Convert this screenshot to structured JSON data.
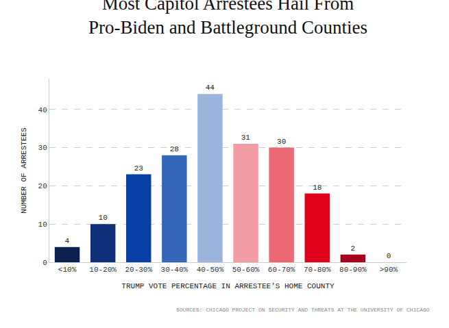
{
  "chart_data": {
    "type": "bar",
    "title": "Most Capitol Arrestees Hail From\nPro-Biden and Battleground Counties",
    "x_label": "TRUMP VOTE PERCENTAGE IN ARRESTEE'S HOME COUNTY",
    "y_label": "NUMBER OF ARRESTEES",
    "annotations": [
      "SOURCES: CHICAGO PROJECT ON SECURITY AND THREATS AT THE UNIVERSITY OF CHICAGO"
    ],
    "categories": [
      "<10%",
      "10-20%",
      "20-30%",
      "30-40%",
      "40-50%",
      "50-60%",
      "60-70%",
      "70-80%",
      "80-90%",
      ">90%"
    ],
    "values": [
      4,
      10,
      23,
      28,
      44,
      31,
      30,
      18,
      2,
      0
    ],
    "colors": [
      "#0c2150",
      "#0f2f78",
      "#063fa6",
      "#3567b9",
      "#9bb4dc",
      "#f29ca4",
      "#eb6875",
      "#df0019",
      "#a6001b",
      "#8c0016"
    ],
    "ylim": [
      0,
      48
    ],
    "yticks": [
      0,
      10,
      20,
      30,
      40
    ],
    "grid": true,
    "data_labels": true
  }
}
